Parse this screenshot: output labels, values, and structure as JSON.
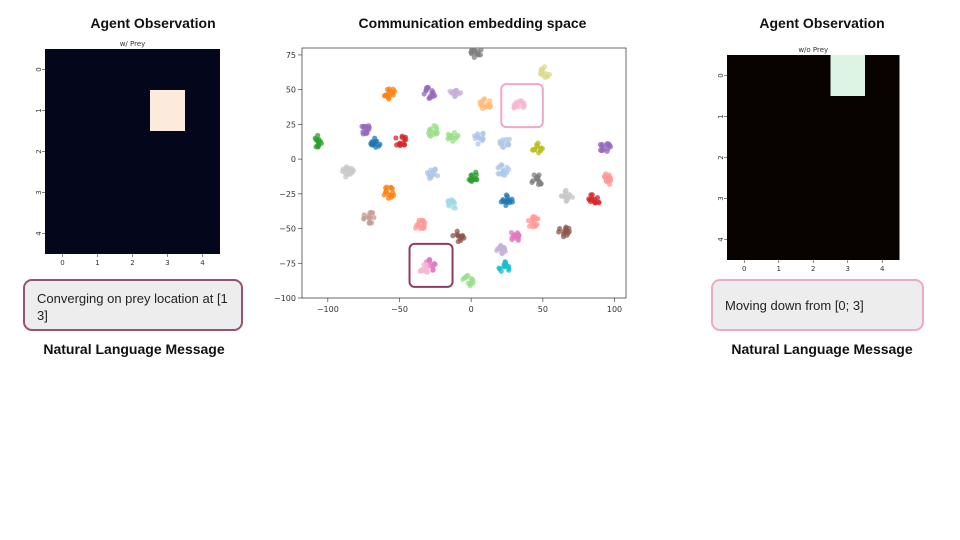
{
  "left_panel": {
    "heading": "Agent Observation",
    "grid_title": "w/ Prey",
    "x_ticks": [
      "0",
      "1",
      "2",
      "3",
      "4"
    ],
    "y_ticks": [
      "0",
      "1",
      "2",
      "3",
      "4"
    ],
    "background_color": "#04061c",
    "highlight_color": "#fcebdd",
    "highlight_cell": {
      "row": 1,
      "col": 3
    },
    "message": "Converging on prey location at [1 3]",
    "message_border_color": "#9b4f72",
    "message_label": "Natural Language Message"
  },
  "center_panel": {
    "heading": "Communication embedding space",
    "highlight_box_colors": [
      "#8e3c64",
      "#f2a7c8"
    ]
  },
  "right_panel": {
    "heading": "Agent Observation",
    "grid_title": "w/o Prey",
    "x_ticks": [
      "0",
      "1",
      "2",
      "3",
      "4"
    ],
    "y_ticks": [
      "0",
      "1",
      "2",
      "3",
      "4"
    ],
    "background_color": "#080201",
    "highlight_color": "#ddf4e4",
    "highlight_cell": {
      "row": 0,
      "col": 3
    },
    "message": "Moving down from [0; 3]",
    "message_border_color": "#f2a7c8",
    "message_label": "Natural Language Message"
  },
  "chart_data": {
    "type": "scatter",
    "xlim": [
      -118,
      108
    ],
    "ylim": [
      -100,
      80
    ],
    "x_ticks": [
      -100,
      -50,
      0,
      50,
      100
    ],
    "y_ticks": [
      75,
      50,
      25,
      0,
      -25,
      -50,
      -75,
      -100
    ],
    "x_tick_labels": [
      "−100",
      "−50",
      "0",
      "50",
      "100"
    ],
    "y_tick_labels": [
      "75",
      "50",
      "25",
      "0",
      "−25",
      "−50",
      "−75",
      "−100"
    ],
    "grid": false,
    "clusters": [
      {
        "x": 3,
        "y": 77,
        "color": "#7f7f7f"
      },
      {
        "x": 51,
        "y": 63,
        "color": "#dbdb8d"
      },
      {
        "x": -57,
        "y": 47,
        "color": "#ff7f0e"
      },
      {
        "x": -29,
        "y": 48,
        "color": "#9467bd"
      },
      {
        "x": -11,
        "y": 48,
        "color": "#c5b0d5"
      },
      {
        "x": 10,
        "y": 40,
        "color": "#ffbb78"
      },
      {
        "x": 34,
        "y": 38,
        "color": "#f7b6d2"
      },
      {
        "x": -74,
        "y": 22,
        "color": "#9467bd"
      },
      {
        "x": -67,
        "y": 12,
        "color": "#1f77b4"
      },
      {
        "x": -49,
        "y": 13,
        "color": "#d62728"
      },
      {
        "x": -26,
        "y": 20,
        "color": "#98df8a"
      },
      {
        "x": -13,
        "y": 16,
        "color": "#98df8a"
      },
      {
        "x": 6,
        "y": 15,
        "color": "#aec7e8"
      },
      {
        "x": 24,
        "y": 12,
        "color": "#aec7e8"
      },
      {
        "x": 46,
        "y": 8,
        "color": "#bcbd22"
      },
      {
        "x": 93,
        "y": 9,
        "color": "#9467bd"
      },
      {
        "x": -107,
        "y": 13,
        "color": "#2ca02c"
      },
      {
        "x": -86,
        "y": -9,
        "color": "#c7c7c7"
      },
      {
        "x": -27,
        "y": -11,
        "color": "#aec7e8"
      },
      {
        "x": 1,
        "y": -13,
        "color": "#2ca02c"
      },
      {
        "x": 22,
        "y": -8,
        "color": "#aec7e8"
      },
      {
        "x": 46,
        "y": -15,
        "color": "#7f7f7f"
      },
      {
        "x": 96,
        "y": -14,
        "color": "#ff9896"
      },
      {
        "x": -57,
        "y": -24,
        "color": "#ff7f0e"
      },
      {
        "x": -14,
        "y": -33,
        "color": "#9edae5"
      },
      {
        "x": 25,
        "y": -30,
        "color": "#1f77b4"
      },
      {
        "x": 67,
        "y": -26,
        "color": "#c7c7c7"
      },
      {
        "x": 86,
        "y": -29,
        "color": "#d62728"
      },
      {
        "x": -36,
        "y": -47,
        "color": "#ff9896"
      },
      {
        "x": -71,
        "y": -42,
        "color": "#c49c94"
      },
      {
        "x": -9,
        "y": -56,
        "color": "#8c564b"
      },
      {
        "x": 43,
        "y": -45,
        "color": "#ff9896"
      },
      {
        "x": 65,
        "y": -52,
        "color": "#8c564b"
      },
      {
        "x": 20,
        "y": -66,
        "color": "#c5b0d5"
      },
      {
        "x": 31,
        "y": -55,
        "color": "#e377c2"
      },
      {
        "x": -28,
        "y": -76,
        "color": "#e377c2"
      },
      {
        "x": -32,
        "y": -80,
        "color": "#f7b6d2"
      },
      {
        "x": 23,
        "y": -78,
        "color": "#17becf"
      },
      {
        "x": -2,
        "y": -88,
        "color": "#98df8a"
      }
    ],
    "highlight_regions": [
      {
        "x0": 21,
        "x1": 50,
        "y0": 23,
        "y1": 54,
        "color": "#f2a7c8"
      },
      {
        "x0": -43,
        "x1": -13,
        "y0": -92,
        "y1": -61,
        "color": "#8e3c64"
      }
    ]
  }
}
